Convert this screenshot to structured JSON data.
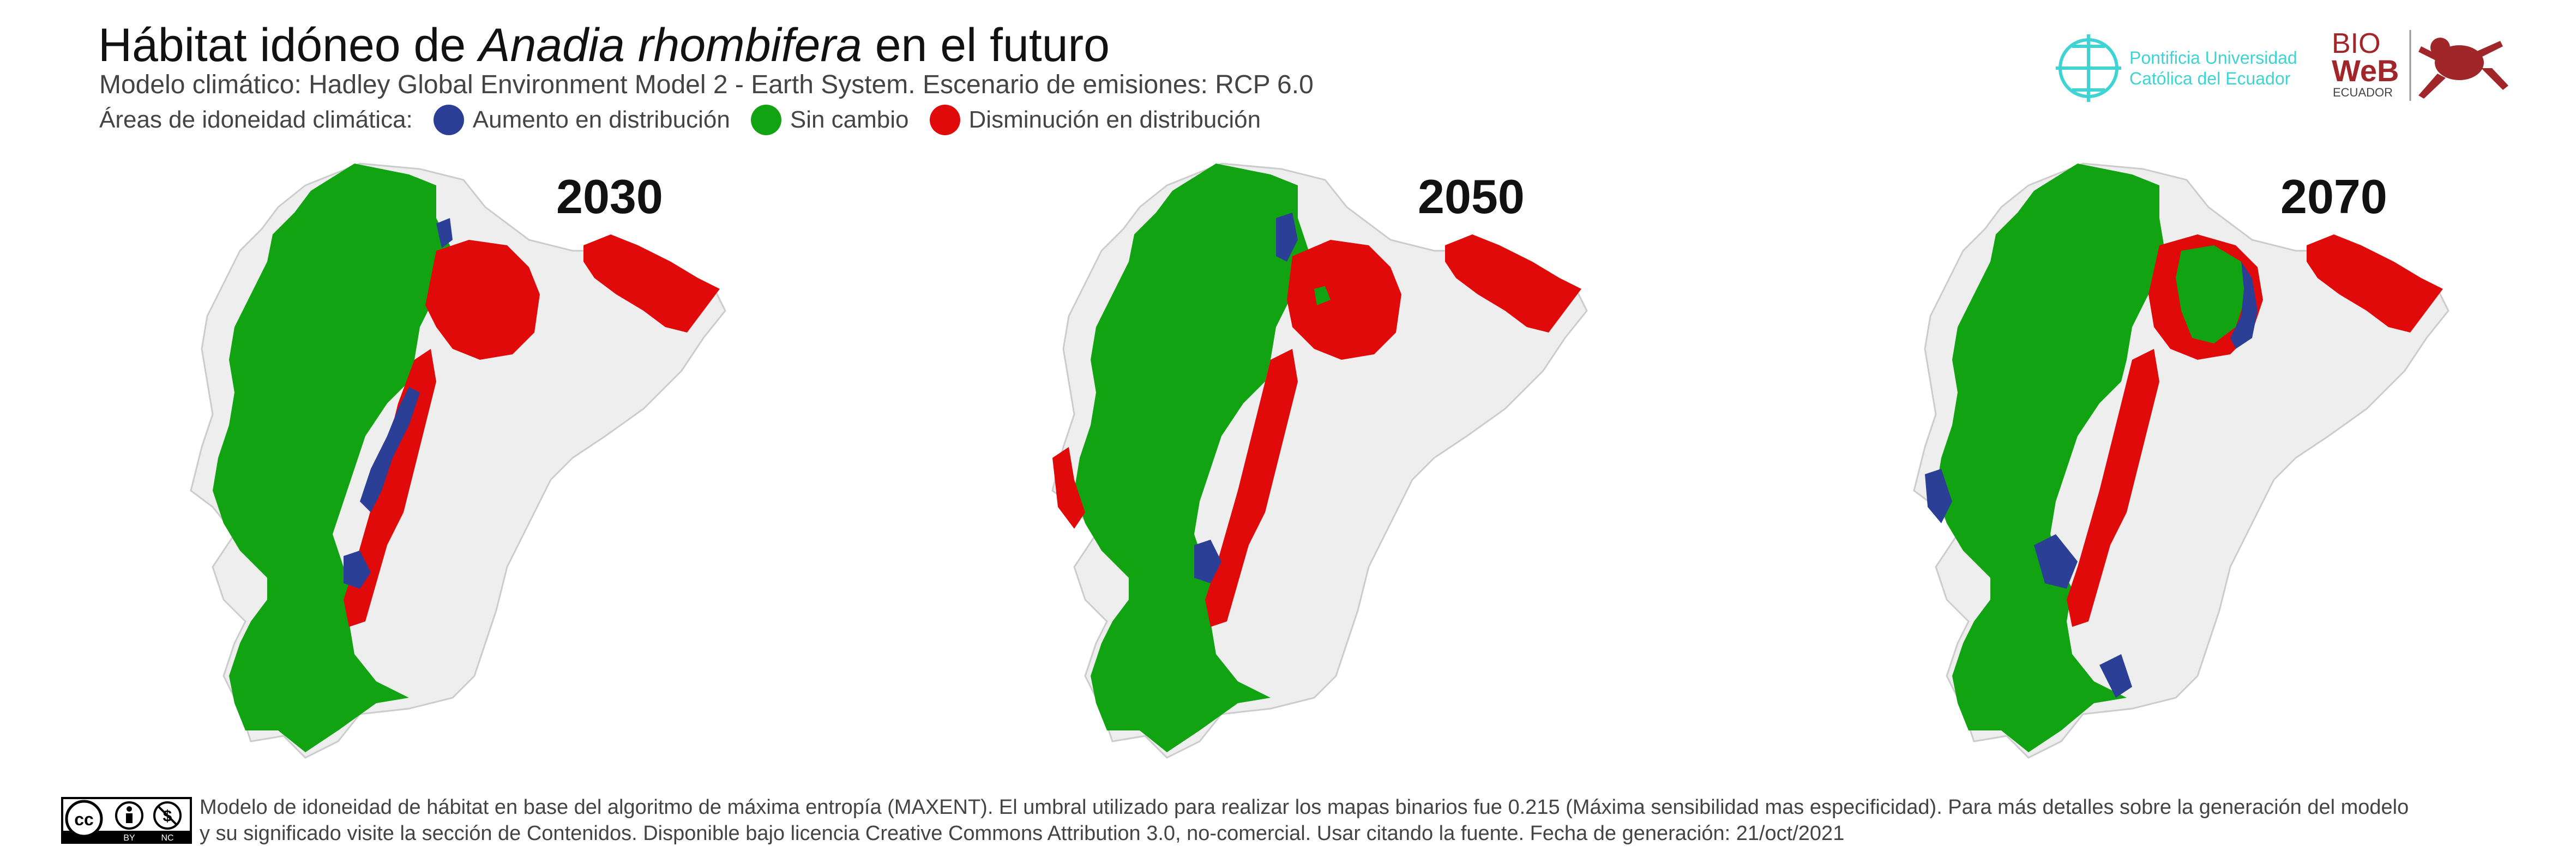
{
  "header": {
    "title_prefix": "Hábitat idóneo de ",
    "title_species": "Anadia rhombifera",
    "title_suffix": " en el futuro",
    "subtitle": "Modelo climático: Hadley Global Environment Model 2 - Earth System. Escenario de emisiones: RCP 6.0"
  },
  "legend": {
    "label": "Áreas de idoneidad climática:",
    "items": [
      {
        "label": "Aumento en distribución",
        "color": "#2b3f96"
      },
      {
        "label": "Sin cambio",
        "color": "#12a312"
      },
      {
        "label": "Disminución en distribución",
        "color": "#e00a0a"
      }
    ]
  },
  "maps": [
    {
      "year": "2030"
    },
    {
      "year": "2050"
    },
    {
      "year": "2070"
    }
  ],
  "logos": {
    "puce_line1": "Pontificia Universidad",
    "puce_line2": "Católica del Ecuador",
    "puce_color": "#3fd3d3",
    "bioweb_top": "BIO",
    "bioweb_mid": "WeB",
    "bioweb_bottom": "ECUADOR",
    "bioweb_color": "#a0262a"
  },
  "footer": {
    "cc_label": "cc",
    "cc_by": "BY",
    "cc_nc": "NC",
    "text_line1": "Modelo de idoneidad de hábitat en base del algoritmo de máxima entropía (MAXENT). El umbral utilizado para realizar los mapas binarios fue 0.215 (Máxima sensibilidad mas especificidad). Para más detalles sobre la generación del modelo",
    "text_line2": "y su significado visite la sección de Contenidos. Disponible bajo licencia Creative Commons Attribution 3.0, no-comercial. Usar citando la fuente. Fecha de generación: 21/oct/2021"
  }
}
